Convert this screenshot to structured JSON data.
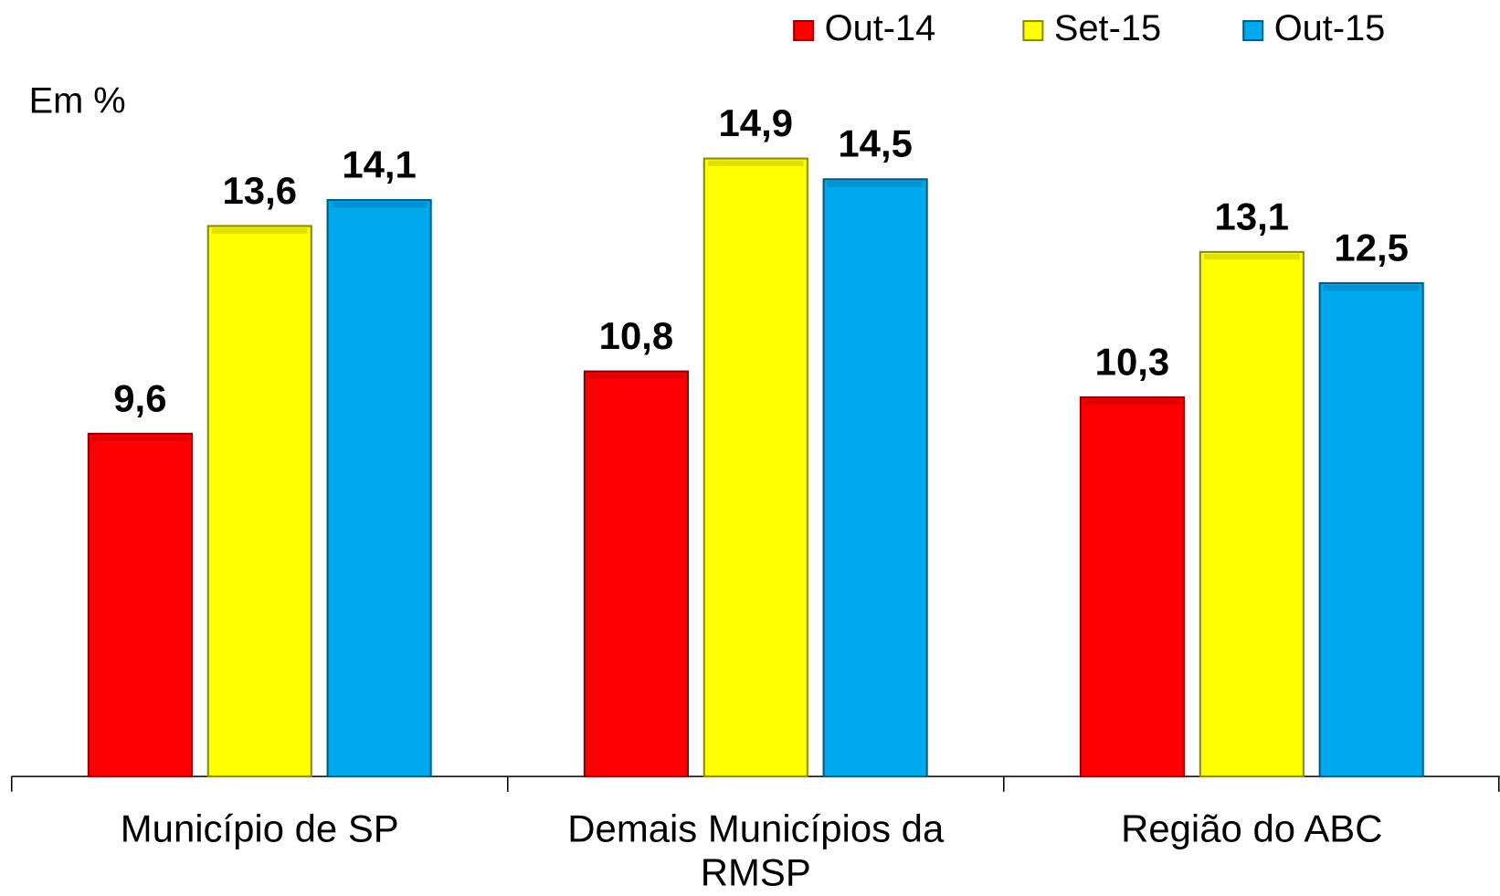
{
  "chart_data": {
    "type": "bar",
    "y_label": "Em %",
    "categories": [
      "Município de SP",
      "Demais Municípios da RMSP",
      "Região do ABC"
    ],
    "series": [
      {
        "name": "Out-14",
        "color": "#ff0000",
        "values": [
          9.6,
          10.8,
          10.3
        ],
        "value_labels": [
          "9,6",
          "10,8",
          "10,3"
        ]
      },
      {
        "name": "Set-15",
        "color": "#ffff00",
        "values": [
          13.6,
          14.9,
          13.1
        ],
        "value_labels": [
          "13,6",
          "14,9",
          "13,1"
        ]
      },
      {
        "name": "Out-15",
        "color": "#00a8ec",
        "values": [
          14.1,
          14.5,
          12.5
        ],
        "value_labels": [
          "14,1",
          "14,5",
          "12,5"
        ]
      }
    ],
    "ylim": [
      3,
      16
    ],
    "legend": "top-right"
  }
}
